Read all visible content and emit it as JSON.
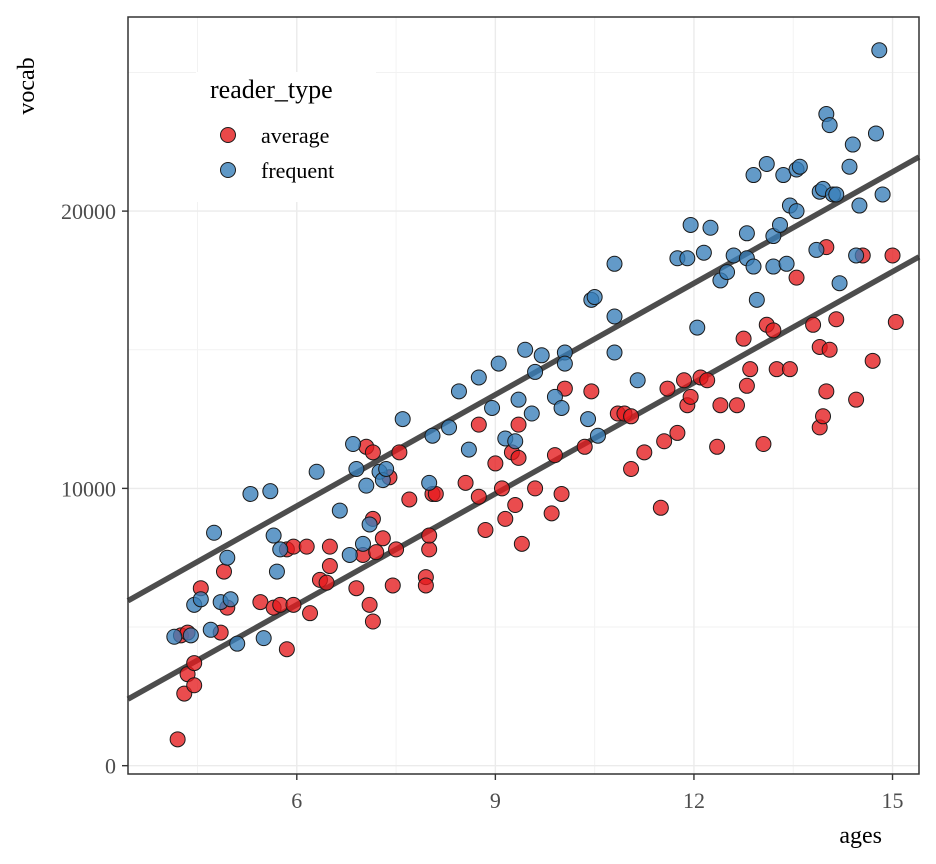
{
  "chart_data": {
    "type": "scatter",
    "xlabel": "ages",
    "ylabel": "vocab",
    "xlim": [
      3.45,
      15.4
    ],
    "ylim": [
      -300,
      27000
    ],
    "xticks": [
      6,
      9,
      12,
      15
    ],
    "yticks": [
      0,
      10000,
      20000
    ],
    "x_tick_labels": [
      "6",
      "9",
      "12",
      "15"
    ],
    "y_tick_labels": [
      "0",
      "10000",
      "20000"
    ],
    "grid": true,
    "legend": {
      "title": "reader_type",
      "placement": "top-left"
    },
    "fit_lines": [
      {
        "name": "frequent",
        "x": [
          3.45,
          15.4
        ],
        "y": [
          5950,
          21950
        ]
      },
      {
        "name": "average",
        "x": [
          3.45,
          15.4
        ],
        "y": [
          2400,
          18350
        ]
      }
    ],
    "series": [
      {
        "name": "average",
        "color": "#e41a1c",
        "points": [
          [
            4.25,
            4700
          ],
          [
            4.35,
            4800
          ],
          [
            4.35,
            3300
          ],
          [
            4.3,
            2600
          ],
          [
            4.2,
            950
          ],
          [
            4.45,
            3700
          ],
          [
            4.45,
            2900
          ],
          [
            4.55,
            6400
          ],
          [
            4.85,
            4800
          ],
          [
            4.9,
            7000
          ],
          [
            4.95,
            5700
          ],
          [
            5.45,
            5900
          ],
          [
            5.65,
            5700
          ],
          [
            5.75,
            5800
          ],
          [
            5.85,
            4200
          ],
          [
            5.85,
            7800
          ],
          [
            5.95,
            7900
          ],
          [
            5.95,
            5800
          ],
          [
            6.15,
            7900
          ],
          [
            6.2,
            5500
          ],
          [
            6.35,
            6700
          ],
          [
            6.45,
            6600
          ],
          [
            6.5,
            7900
          ],
          [
            6.5,
            7200
          ],
          [
            6.9,
            6400
          ],
          [
            7.0,
            7600
          ],
          [
            7.05,
            11500
          ],
          [
            7.1,
            5800
          ],
          [
            7.15,
            11300
          ],
          [
            7.15,
            8900
          ],
          [
            7.15,
            5200
          ],
          [
            7.2,
            7700
          ],
          [
            7.3,
            8200
          ],
          [
            7.4,
            10400
          ],
          [
            7.45,
            6500
          ],
          [
            7.5,
            7800
          ],
          [
            7.55,
            11300
          ],
          [
            7.7,
            9600
          ],
          [
            7.95,
            6800
          ],
          [
            7.95,
            6500
          ],
          [
            8.0,
            7800
          ],
          [
            8.0,
            8300
          ],
          [
            8.05,
            9800
          ],
          [
            8.1,
            9800
          ],
          [
            8.55,
            10200
          ],
          [
            8.75,
            12300
          ],
          [
            8.75,
            9700
          ],
          [
            8.85,
            8500
          ],
          [
            9.0,
            10900
          ],
          [
            9.1,
            10000
          ],
          [
            9.15,
            8900
          ],
          [
            9.25,
            11300
          ],
          [
            9.3,
            9400
          ],
          [
            9.4,
            8000
          ],
          [
            9.35,
            11100
          ],
          [
            9.35,
            12300
          ],
          [
            9.6,
            10000
          ],
          [
            9.85,
            9100
          ],
          [
            9.9,
            11200
          ],
          [
            10.0,
            9800
          ],
          [
            10.05,
            13600
          ],
          [
            10.35,
            11500
          ],
          [
            10.45,
            13500
          ],
          [
            10.85,
            12700
          ],
          [
            10.95,
            12700
          ],
          [
            11.05,
            10700
          ],
          [
            11.05,
            12600
          ],
          [
            11.25,
            11300
          ],
          [
            11.5,
            9300
          ],
          [
            11.55,
            11700
          ],
          [
            11.6,
            13600
          ],
          [
            11.75,
            12000
          ],
          [
            11.85,
            13900
          ],
          [
            11.9,
            13000
          ],
          [
            11.95,
            13300
          ],
          [
            12.1,
            14000
          ],
          [
            12.2,
            13900
          ],
          [
            12.35,
            11500
          ],
          [
            12.4,
            13000
          ],
          [
            12.65,
            13000
          ],
          [
            12.75,
            15400
          ],
          [
            12.8,
            13700
          ],
          [
            12.85,
            14300
          ],
          [
            13.05,
            11600
          ],
          [
            13.1,
            15900
          ],
          [
            13.2,
            15700
          ],
          [
            13.25,
            14300
          ],
          [
            13.45,
            14300
          ],
          [
            13.55,
            17600
          ],
          [
            13.8,
            15900
          ],
          [
            13.9,
            12200
          ],
          [
            13.9,
            15100
          ],
          [
            13.95,
            12600
          ],
          [
            14.0,
            13500
          ],
          [
            14.0,
            18700
          ],
          [
            14.05,
            15000
          ],
          [
            14.15,
            16100
          ],
          [
            14.45,
            13200
          ],
          [
            14.55,
            18400
          ],
          [
            14.7,
            14600
          ],
          [
            15.0,
            18400
          ],
          [
            15.05,
            16000
          ]
        ]
      },
      {
        "name": "frequent",
        "color": "#377eb8",
        "points": [
          [
            4.15,
            4650
          ],
          [
            4.4,
            4700
          ],
          [
            4.45,
            5800
          ],
          [
            4.55,
            6000
          ],
          [
            4.7,
            4900
          ],
          [
            4.75,
            8400
          ],
          [
            4.85,
            5900
          ],
          [
            4.95,
            7500
          ],
          [
            5.0,
            6000
          ],
          [
            5.1,
            4400
          ],
          [
            5.3,
            9800
          ],
          [
            5.5,
            4600
          ],
          [
            5.6,
            9900
          ],
          [
            5.65,
            8300
          ],
          [
            5.7,
            7000
          ],
          [
            5.75,
            7800
          ],
          [
            6.3,
            10600
          ],
          [
            6.65,
            9200
          ],
          [
            6.8,
            7600
          ],
          [
            6.85,
            11600
          ],
          [
            6.9,
            10700
          ],
          [
            7.0,
            8000
          ],
          [
            7.05,
            10100
          ],
          [
            7.1,
            8700
          ],
          [
            7.25,
            10600
          ],
          [
            7.3,
            10300
          ],
          [
            7.35,
            10700
          ],
          [
            7.6,
            12500
          ],
          [
            8.0,
            10200
          ],
          [
            8.05,
            11900
          ],
          [
            8.3,
            12200
          ],
          [
            8.45,
            13500
          ],
          [
            8.6,
            11400
          ],
          [
            8.75,
            14000
          ],
          [
            8.95,
            12900
          ],
          [
            9.05,
            14500
          ],
          [
            9.15,
            11800
          ],
          [
            9.3,
            11700
          ],
          [
            9.35,
            13200
          ],
          [
            9.45,
            15000
          ],
          [
            9.55,
            12700
          ],
          [
            9.6,
            14200
          ],
          [
            9.7,
            14800
          ],
          [
            9.9,
            13300
          ],
          [
            10.0,
            12900
          ],
          [
            10.05,
            14900
          ],
          [
            10.05,
            14500
          ],
          [
            10.4,
            12500
          ],
          [
            10.45,
            16800
          ],
          [
            10.5,
            16900
          ],
          [
            10.55,
            11900
          ],
          [
            10.8,
            14900
          ],
          [
            10.8,
            16200
          ],
          [
            10.8,
            18100
          ],
          [
            11.15,
            13900
          ],
          [
            11.75,
            18300
          ],
          [
            11.9,
            18300
          ],
          [
            11.95,
            19500
          ],
          [
            12.05,
            15800
          ],
          [
            12.15,
            18500
          ],
          [
            12.25,
            19400
          ],
          [
            12.4,
            17500
          ],
          [
            12.5,
            17800
          ],
          [
            12.6,
            18400
          ],
          [
            12.8,
            18300
          ],
          [
            12.8,
            19200
          ],
          [
            12.9,
            18000
          ],
          [
            12.9,
            21300
          ],
          [
            12.95,
            16800
          ],
          [
            13.1,
            21700
          ],
          [
            13.2,
            18000
          ],
          [
            13.2,
            19100
          ],
          [
            13.3,
            19500
          ],
          [
            13.35,
            21300
          ],
          [
            13.4,
            18100
          ],
          [
            13.45,
            20200
          ],
          [
            13.55,
            20000
          ],
          [
            13.55,
            21500
          ],
          [
            13.6,
            21600
          ],
          [
            13.85,
            18600
          ],
          [
            13.9,
            20700
          ],
          [
            13.95,
            20800
          ],
          [
            14.0,
            23500
          ],
          [
            14.05,
            23100
          ],
          [
            14.1,
            20600
          ],
          [
            14.15,
            20600
          ],
          [
            14.2,
            17400
          ],
          [
            14.35,
            21600
          ],
          [
            14.4,
            22400
          ],
          [
            14.45,
            18400
          ],
          [
            14.5,
            20200
          ],
          [
            14.75,
            22800
          ],
          [
            14.8,
            25800
          ],
          [
            14.85,
            20600
          ]
        ]
      }
    ]
  }
}
